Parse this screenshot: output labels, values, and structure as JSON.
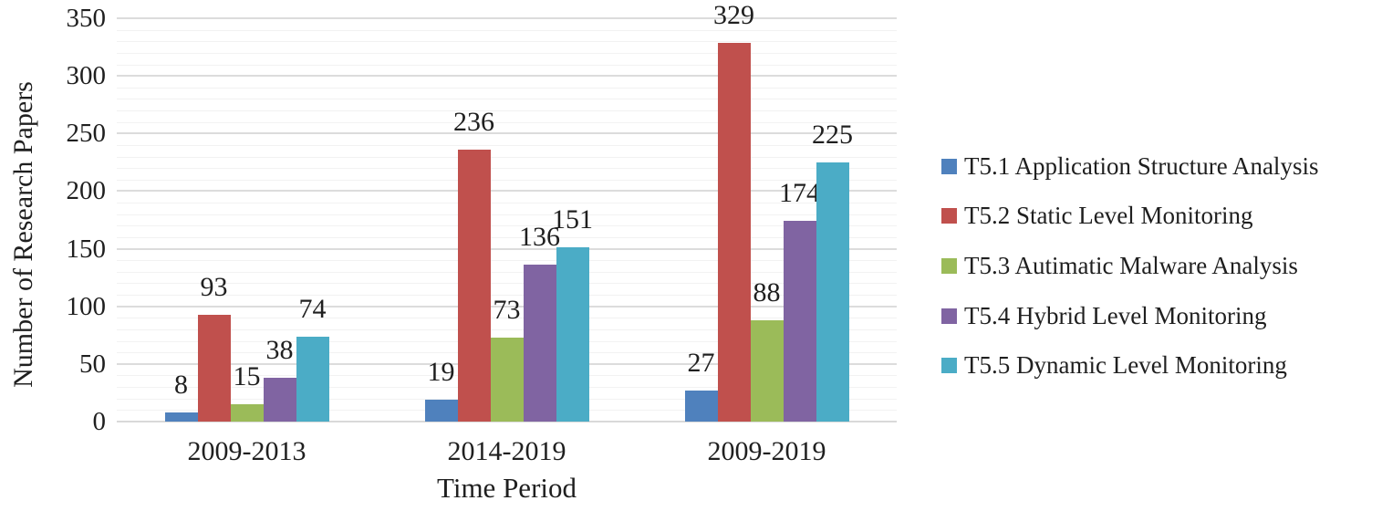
{
  "chart_data": {
    "type": "bar",
    "categories": [
      "2009-2013",
      "2014-2019",
      "2009-2019"
    ],
    "series": [
      {
        "name": "T5.1 Application Structure Analysis",
        "color": "#4f81bd",
        "values": [
          8,
          19,
          27
        ]
      },
      {
        "name": "T5.2 Static Level Monitoring",
        "color": "#c0504d",
        "values": [
          93,
          236,
          329
        ]
      },
      {
        "name": "T5.3 Autimatic Malware Analysis",
        "color": "#9bbb59",
        "values": [
          15,
          73,
          88
        ]
      },
      {
        "name": "T5.4 Hybrid Level Monitoring",
        "color": "#8064a2",
        "values": [
          38,
          136,
          174
        ]
      },
      {
        "name": "T5.5 Dynamic Level Monitoring",
        "color": "#4bacc6",
        "values": [
          74,
          151,
          225
        ]
      }
    ],
    "title": "",
    "xlabel": "Time Period",
    "ylabel": "Number of Research Papers",
    "ylim": [
      0,
      350
    ],
    "ytick_step": 50,
    "minor_grid_step": 10,
    "yticks": [
      0,
      50,
      100,
      150,
      200,
      250,
      300,
      350
    ],
    "grid": "horizontal",
    "legend_position": "right",
    "data_labels": "outside-end",
    "text_color": "#1f1f1f",
    "major_grid_color": "#dcdcdc",
    "minor_grid_color": "#f2f2f2",
    "axis_line_color": "#d9d9d9"
  }
}
